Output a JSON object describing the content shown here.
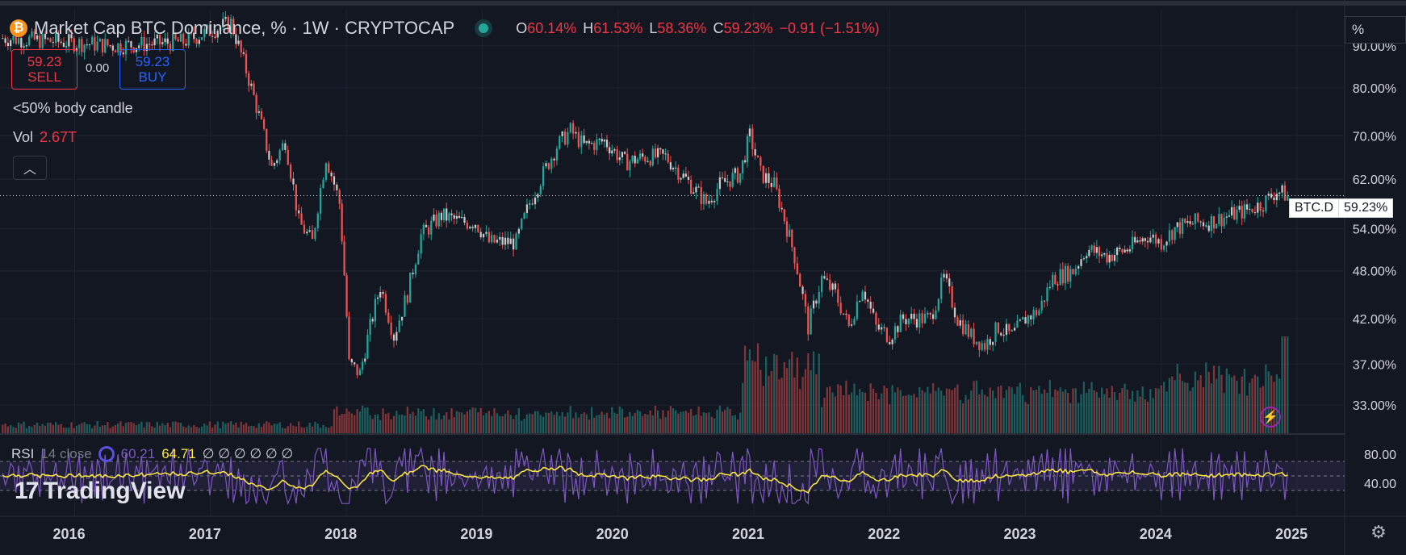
{
  "header": {
    "symbol_icon": "bitcoin-icon",
    "title": "Market Cap BTC Dominance, % · 1W · CRYPTOCAP",
    "ohlc": {
      "o_label": "O",
      "o": "60.14%",
      "h_label": "H",
      "h": "61.53%",
      "l_label": "L",
      "l": "58.36%",
      "c_label": "C",
      "c": "59.23%",
      "change": "−0.91 (−1.51%)"
    }
  },
  "trade": {
    "sell_price": "59.23",
    "sell_label": "SELL",
    "spread": "0.00",
    "buy_price": "59.23",
    "buy_label": "BUY"
  },
  "indicator_note": "<50% body candle",
  "volume": {
    "label": "Vol",
    "value": "2.67T"
  },
  "rsi": {
    "label": "RSI",
    "params": "14 close",
    "value": "60.21",
    "ma_value": "64.71",
    "placeholders": "∅ ∅ ∅ ∅ ∅ ∅"
  },
  "scale_toggle": "%",
  "price_tag": {
    "ticker": "BTC.D",
    "value": "59.23%"
  },
  "logo_text": "TradingView",
  "colors": {
    "bg": "#131722",
    "up": "#26a69a",
    "down": "#ef5350",
    "rsi": "#7e57c2",
    "rsi_ma": "#ffeb3b"
  },
  "chart_data": {
    "type": "candlestick",
    "title": "Market Cap BTC Dominance, % · 1W · CRYPTOCAP",
    "y_scale": "log",
    "ylim": [
      30.5,
      100
    ],
    "y_ticks": [
      "90.00%",
      "80.00%",
      "70.00%",
      "62.00%",
      "54.00%",
      "48.00%",
      "42.00%",
      "37.00%",
      "33.00%"
    ],
    "y_tick_values": [
      90,
      80,
      70,
      62,
      54,
      48,
      42,
      37,
      33
    ],
    "x_ticks": [
      "2016",
      "2017",
      "2018",
      "2019",
      "2020",
      "2021",
      "2022",
      "2023",
      "2024",
      "2025"
    ],
    "x_tick_values": [
      2016,
      2017,
      2018,
      2019,
      2020,
      2021,
      2022,
      2023,
      2024,
      2025
    ],
    "xlim": [
      2015.45,
      2025.35
    ],
    "last_price": 59.23,
    "anchors": [
      [
        2015.45,
        92
      ],
      [
        2015.9,
        91
      ],
      [
        2016.3,
        90
      ],
      [
        2016.8,
        91
      ],
      [
        2017.15,
        96
      ],
      [
        2017.3,
        80
      ],
      [
        2017.45,
        64
      ],
      [
        2017.55,
        69
      ],
      [
        2017.65,
        55
      ],
      [
        2017.75,
        52
      ],
      [
        2017.85,
        66
      ],
      [
        2017.95,
        58
      ],
      [
        2018.02,
        37
      ],
      [
        2018.1,
        36
      ],
      [
        2018.25,
        46
      ],
      [
        2018.35,
        40
      ],
      [
        2018.45,
        45
      ],
      [
        2018.55,
        53
      ],
      [
        2018.7,
        56
      ],
      [
        2018.85,
        55
      ],
      [
        2018.95,
        55
      ],
      [
        2019.05,
        52
      ],
      [
        2019.25,
        52
      ],
      [
        2019.35,
        58
      ],
      [
        2019.55,
        68
      ],
      [
        2019.65,
        71
      ],
      [
        2019.75,
        68
      ],
      [
        2019.9,
        69
      ],
      [
        2020.05,
        65
      ],
      [
        2020.2,
        66
      ],
      [
        2020.35,
        66
      ],
      [
        2020.5,
        62
      ],
      [
        2020.65,
        58
      ],
      [
        2020.75,
        61
      ],
      [
        2020.9,
        63
      ],
      [
        2020.97,
        70
      ],
      [
        2021.05,
        63
      ],
      [
        2021.15,
        61
      ],
      [
        2021.3,
        50
      ],
      [
        2021.4,
        41
      ],
      [
        2021.5,
        47
      ],
      [
        2021.6,
        45
      ],
      [
        2021.7,
        41
      ],
      [
        2021.8,
        46
      ],
      [
        2021.9,
        41
      ],
      [
        2022.0,
        40
      ],
      [
        2022.1,
        42
      ],
      [
        2022.2,
        42
      ],
      [
        2022.3,
        42
      ],
      [
        2022.4,
        47
      ],
      [
        2022.5,
        42
      ],
      [
        2022.6,
        40
      ],
      [
        2022.7,
        39
      ],
      [
        2022.8,
        41
      ],
      [
        2022.9,
        40
      ],
      [
        2023.0,
        42
      ],
      [
        2023.1,
        43
      ],
      [
        2023.2,
        47
      ],
      [
        2023.35,
        48
      ],
      [
        2023.45,
        51
      ],
      [
        2023.6,
        50
      ],
      [
        2023.75,
        51
      ],
      [
        2023.9,
        53
      ],
      [
        2024.0,
        52
      ],
      [
        2024.1,
        54
      ],
      [
        2024.25,
        55
      ],
      [
        2024.35,
        55
      ],
      [
        2024.5,
        56
      ],
      [
        2024.65,
        57
      ],
      [
        2024.75,
        58
      ],
      [
        2024.85,
        60
      ],
      [
        2024.93,
        59.23
      ]
    ],
    "rsi_ylim": [
      0,
      100
    ],
    "rsi_ticks": [
      "80.00",
      "40.00"
    ],
    "rsi_tick_values": [
      80,
      40
    ],
    "rsi_bands": [
      70,
      50,
      30
    ]
  }
}
